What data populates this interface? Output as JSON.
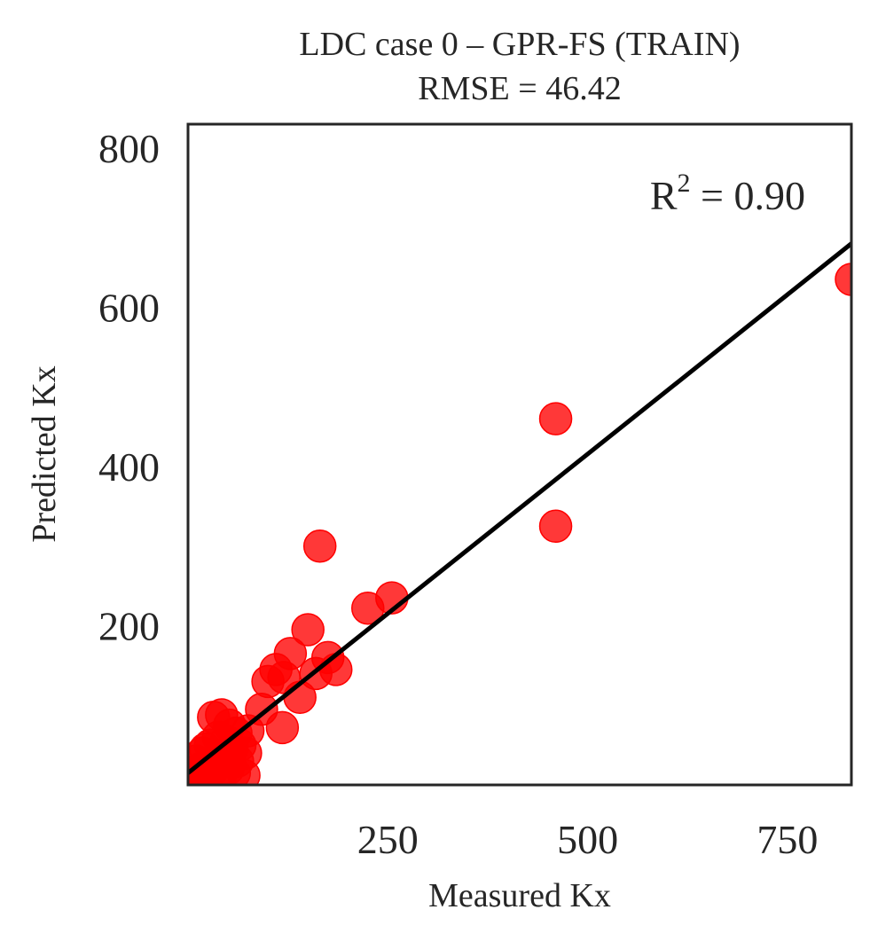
{
  "chart_data": {
    "type": "scatter",
    "title": "LDC case 0 – GPR-FS (TRAIN)",
    "subtitle": "RMSE = 46.42",
    "xlabel": "Measured Kx",
    "ylabel": "Predicted Kx",
    "xlim": [
      0,
      830
    ],
    "ylim": [
      0,
      830
    ],
    "xticks": [
      250,
      500,
      750
    ],
    "yticks": [
      200,
      400,
      600,
      800
    ],
    "grid": false,
    "annotation": {
      "prefix": "R",
      "superscript": "2",
      "suffix": " = 0.90"
    },
    "point_color": "#ff0000",
    "fit_line": {
      "x": [
        0,
        830
      ],
      "y": [
        15,
        680
      ],
      "color": "#000000"
    },
    "points": [
      {
        "x": 3,
        "y": 3
      },
      {
        "x": 6,
        "y": 15
      },
      {
        "x": 10,
        "y": 30
      },
      {
        "x": 12,
        "y": 5
      },
      {
        "x": 15,
        "y": 20
      },
      {
        "x": 18,
        "y": 40
      },
      {
        "x": 20,
        "y": 8
      },
      {
        "x": 22,
        "y": 45
      },
      {
        "x": 25,
        "y": 12
      },
      {
        "x": 28,
        "y": 50
      },
      {
        "x": 30,
        "y": 18
      },
      {
        "x": 32,
        "y": 85
      },
      {
        "x": 35,
        "y": 25
      },
      {
        "x": 38,
        "y": 60
      },
      {
        "x": 40,
        "y": 10
      },
      {
        "x": 42,
        "y": 88
      },
      {
        "x": 45,
        "y": 35
      },
      {
        "x": 48,
        "y": 55
      },
      {
        "x": 50,
        "y": 20
      },
      {
        "x": 52,
        "y": 75
      },
      {
        "x": 55,
        "y": 45
      },
      {
        "x": 58,
        "y": 15
      },
      {
        "x": 60,
        "y": 65
      },
      {
        "x": 62,
        "y": 30
      },
      {
        "x": 65,
        "y": 50
      },
      {
        "x": 70,
        "y": 12
      },
      {
        "x": 72,
        "y": 40
      },
      {
        "x": 75,
        "y": 68
      },
      {
        "x": 92,
        "y": 95
      },
      {
        "x": 100,
        "y": 130
      },
      {
        "x": 110,
        "y": 145
      },
      {
        "x": 118,
        "y": 72
      },
      {
        "x": 120,
        "y": 135
      },
      {
        "x": 128,
        "y": 165
      },
      {
        "x": 140,
        "y": 110
      },
      {
        "x": 150,
        "y": 195
      },
      {
        "x": 160,
        "y": 140
      },
      {
        "x": 165,
        "y": 300
      },
      {
        "x": 175,
        "y": 160
      },
      {
        "x": 185,
        "y": 145
      },
      {
        "x": 225,
        "y": 222
      },
      {
        "x": 255,
        "y": 235
      },
      {
        "x": 460,
        "y": 460
      },
      {
        "x": 460,
        "y": 325
      },
      {
        "x": 830,
        "y": 635
      }
    ]
  }
}
